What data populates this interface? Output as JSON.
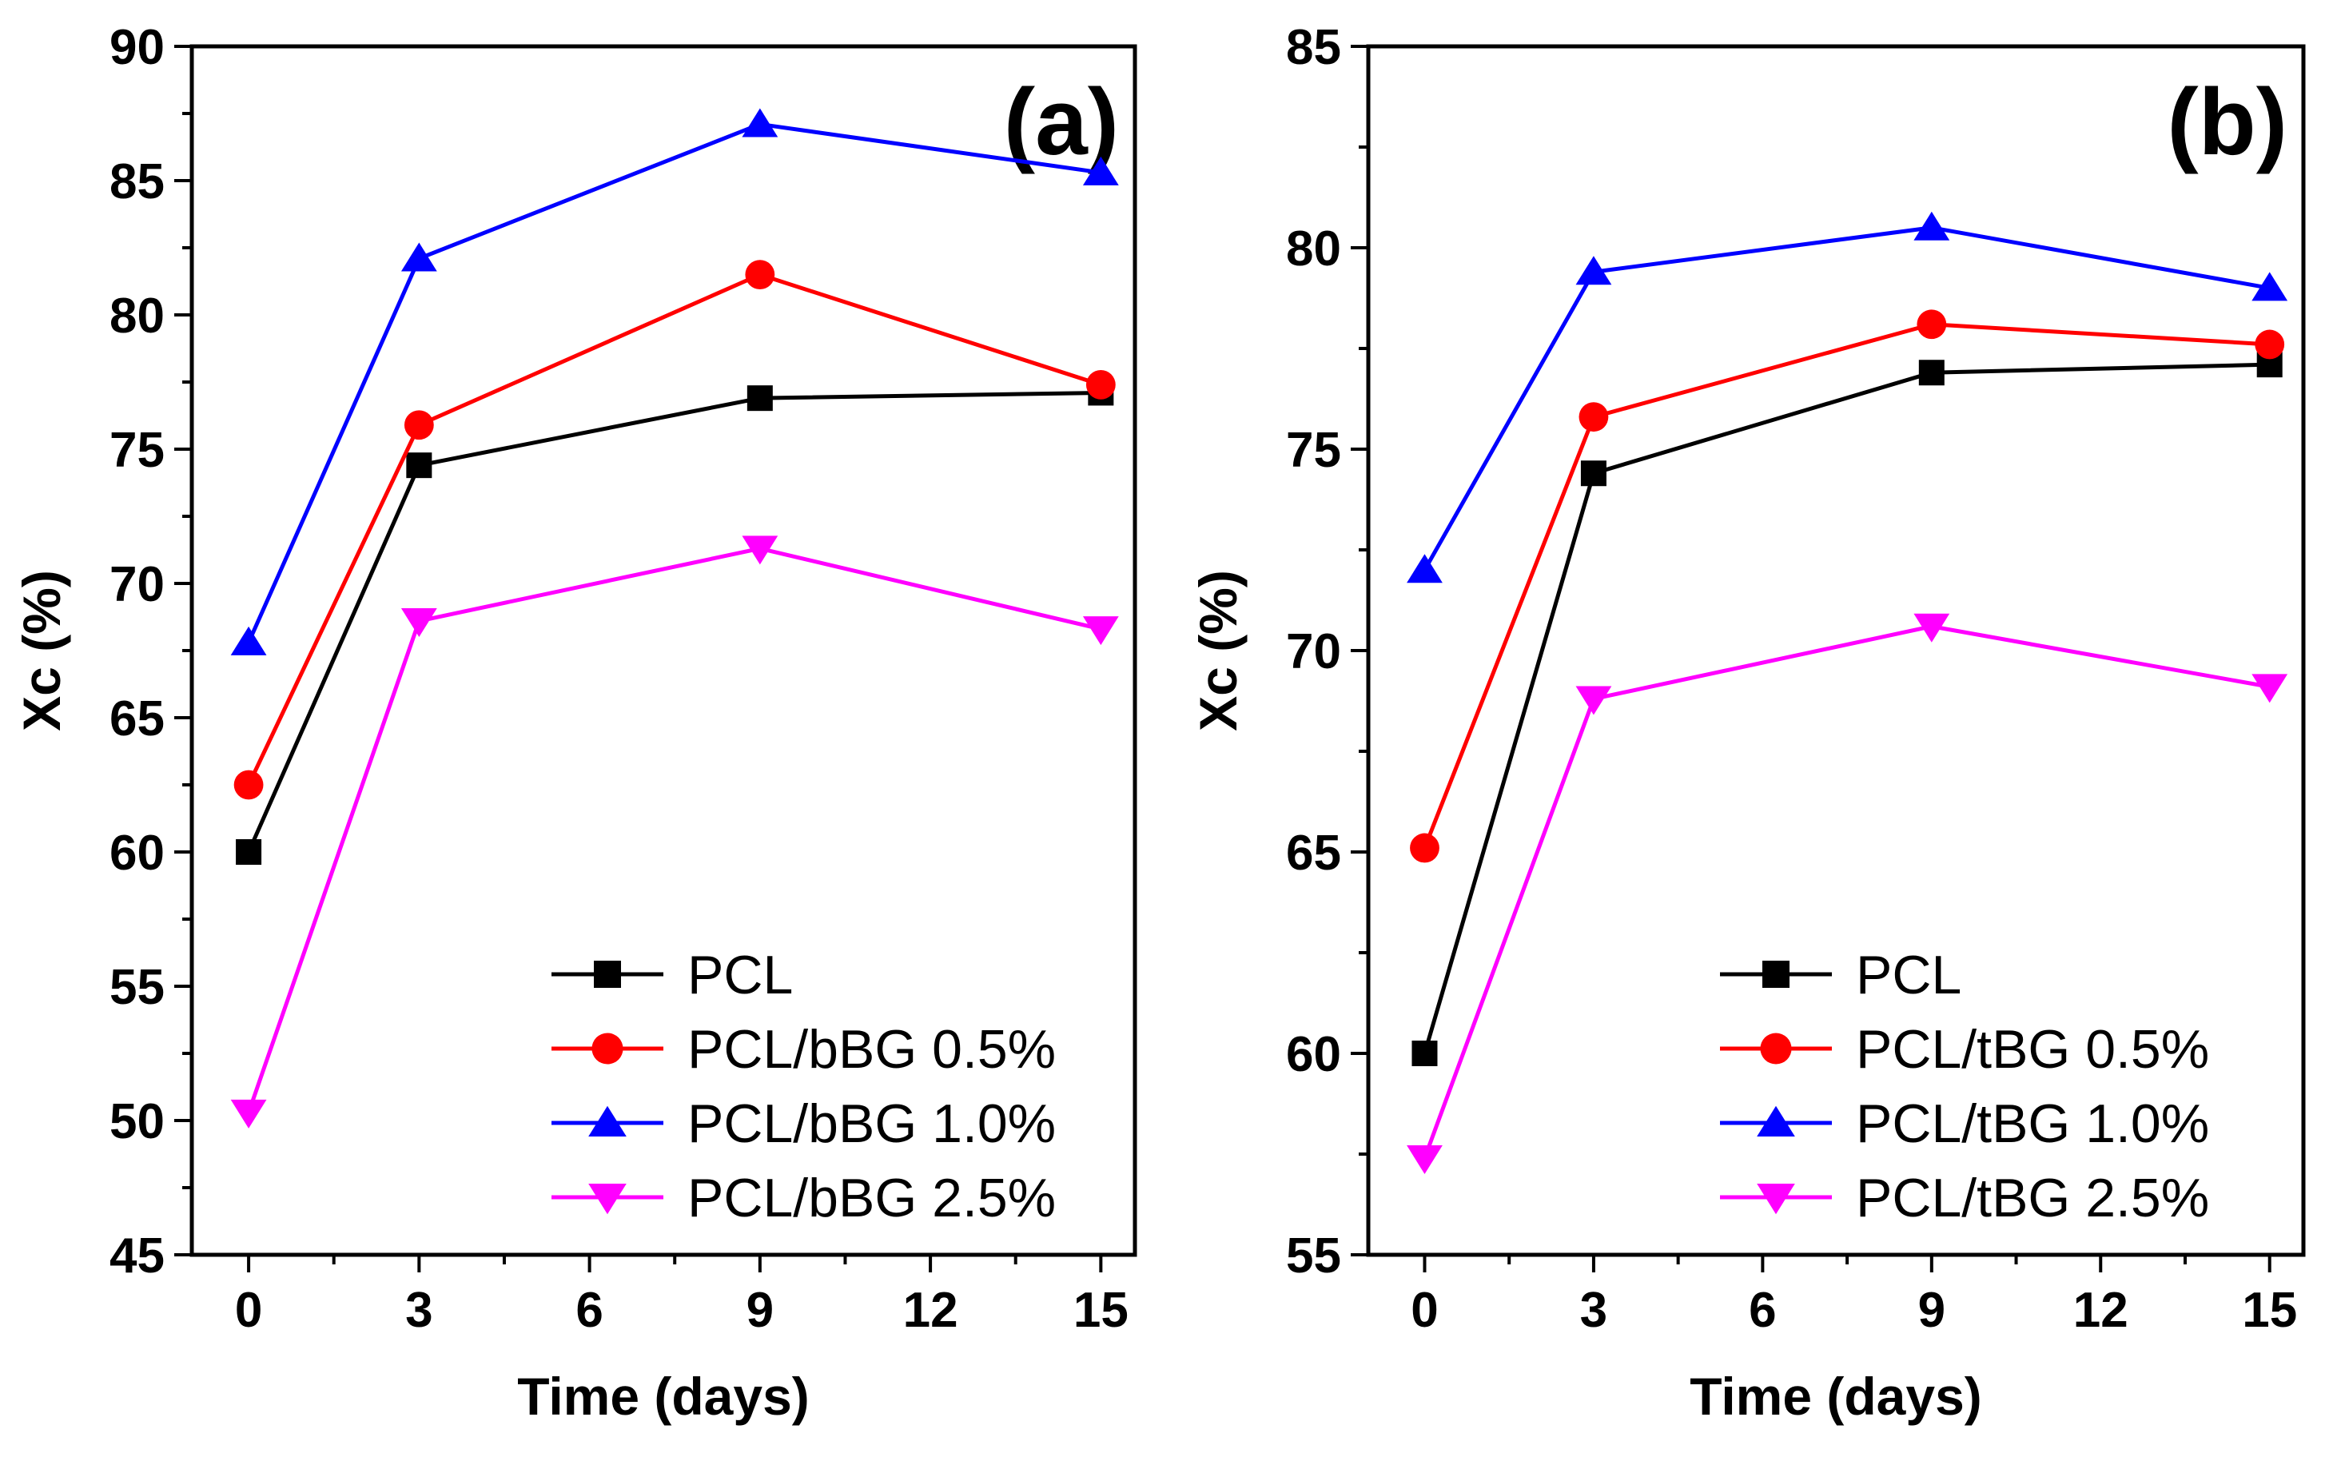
{
  "chart_data": [
    {
      "type": "line",
      "panel_label": "(a)",
      "xlabel": "Time (days)",
      "ylabel": "Xc (%)",
      "x": [
        0,
        3,
        9,
        15
      ],
      "xlim": [
        -1,
        15.6
      ],
      "ylim": [
        45,
        90
      ],
      "xticks": [
        0,
        3,
        6,
        9,
        12,
        15
      ],
      "yticks": [
        45,
        50,
        55,
        60,
        65,
        70,
        75,
        80,
        85,
        90
      ],
      "legend_position": "bottom-right",
      "series": [
        {
          "name": "PCL",
          "values": [
            60.0,
            74.4,
            76.9,
            77.1
          ],
          "color": "#000000",
          "marker": "square"
        },
        {
          "name": "PCL/bBG 0.5%",
          "values": [
            62.5,
            75.9,
            81.5,
            77.4
          ],
          "color": "#ff0000",
          "marker": "circle"
        },
        {
          "name": "PCL/bBG 1.0%",
          "values": [
            67.8,
            82.1,
            87.1,
            85.3
          ],
          "color": "#0000ff",
          "marker": "triangle-up"
        },
        {
          "name": "PCL/bBG 2.5%",
          "values": [
            50.3,
            68.6,
            71.3,
            68.3
          ],
          "color": "#ff00ff",
          "marker": "triangle-down"
        }
      ]
    },
    {
      "type": "line",
      "panel_label": "(b)",
      "xlabel": "Time (days)",
      "ylabel": "Xc (%)",
      "x": [
        0,
        3,
        9,
        15
      ],
      "xlim": [
        -1,
        15.6
      ],
      "ylim": [
        55,
        85
      ],
      "xticks": [
        0,
        3,
        6,
        9,
        12,
        15
      ],
      "yticks": [
        55,
        60,
        65,
        70,
        75,
        80,
        85
      ],
      "legend_position": "bottom-right",
      "series": [
        {
          "name": "PCL",
          "values": [
            60.0,
            74.4,
            76.9,
            77.1
          ],
          "color": "#000000",
          "marker": "square"
        },
        {
          "name": "PCL/tBG 0.5%",
          "values": [
            65.1,
            75.8,
            78.1,
            77.6
          ],
          "color": "#ff0000",
          "marker": "circle"
        },
        {
          "name": "PCL/tBG 1.0%",
          "values": [
            72.0,
            79.4,
            80.5,
            79.0
          ],
          "color": "#0000ff",
          "marker": "triangle-up"
        },
        {
          "name": "PCL/tBG 2.5%",
          "values": [
            57.4,
            68.8,
            70.6,
            69.1
          ],
          "color": "#ff00ff",
          "marker": "triangle-down"
        }
      ]
    }
  ]
}
